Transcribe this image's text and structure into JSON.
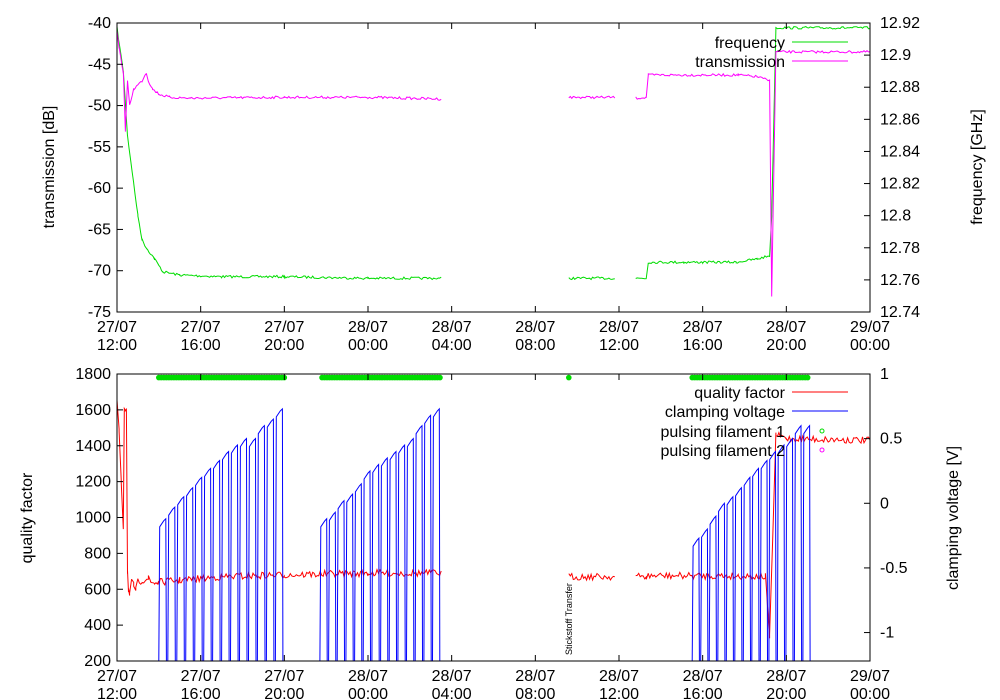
{
  "chart_data": [
    {
      "type": "line",
      "xlabel": "",
      "ylabel": "transmission [dB]",
      "y2label": "frequency [GHz]",
      "ylim": [
        -75,
        -40
      ],
      "y2lim": [
        12.74,
        12.92
      ],
      "xlim_hours": [
        0,
        36
      ],
      "x_ticks": [
        {
          "d": "27/07",
          "t": "12:00"
        },
        {
          "d": "27/07",
          "t": "16:00"
        },
        {
          "d": "27/07",
          "t": "20:00"
        },
        {
          "d": "28/07",
          "t": "00:00"
        },
        {
          "d": "28/07",
          "t": "04:00"
        },
        {
          "d": "28/07",
          "t": "08:00"
        },
        {
          "d": "28/07",
          "t": "12:00"
        },
        {
          "d": "28/07",
          "t": "16:00"
        },
        {
          "d": "28/07",
          "t": "20:00"
        },
        {
          "d": "29/07",
          "t": "00:00"
        }
      ],
      "y_ticks": [
        "-40",
        "-45",
        "-50",
        "-55",
        "-60",
        "-65",
        "-70",
        "-75"
      ],
      "y2_ticks": [
        "12.92",
        "12.9",
        "12.88",
        "12.86",
        "12.84",
        "12.82",
        "12.8",
        "12.78",
        "12.76",
        "12.74"
      ],
      "legend_position": "top-right",
      "series": [
        {
          "name": "frequency",
          "axis": "y2",
          "color": "#00dd00",
          "x_hours": [
            0,
            0.3,
            0.5,
            0.8,
            1.0,
            1.2,
            1.4,
            1.8,
            2.2,
            3.0,
            5,
            8,
            12,
            15.5,
            null,
            21.6,
            23.8,
            null,
            24.8,
            25.3,
            25.4,
            27.1,
            28.0,
            29.6,
            30.6,
            31.2,
            31.3,
            31.5,
            36
          ],
          "y": [
            12.917,
            12.89,
            12.85,
            12.82,
            12.8,
            12.785,
            12.78,
            12.773,
            12.765,
            12.763,
            12.762,
            12.762,
            12.761,
            12.761,
            null,
            12.761,
            12.761,
            null,
            12.761,
            12.761,
            12.771,
            12.771,
            12.771,
            12.771,
            12.773,
            12.775,
            12.8,
            12.917,
            12.917
          ]
        },
        {
          "name": "transmission",
          "axis": "y",
          "color": "#ff00ff",
          "x_hours": [
            0,
            0.1,
            0.3,
            0.4,
            0.5,
            0.6,
            0.8,
            1.2,
            1.4,
            1.5,
            1.7,
            2.0,
            2.5,
            3.5,
            8,
            12,
            15.5,
            null,
            21.6,
            23.8,
            null,
            24.8,
            25.3,
            25.4,
            29.7,
            30.6,
            31.2,
            31.3,
            31.5,
            36
          ],
          "y": [
            -41,
            -43,
            -46,
            -53,
            -47,
            -50,
            -48,
            -47,
            -46,
            -47,
            -48,
            -48.6,
            -49,
            -49.1,
            -49,
            -49,
            -49.2,
            null,
            -49,
            -49,
            null,
            -49.1,
            -49,
            -46.3,
            -46.3,
            -46.5,
            -47,
            -73,
            -43.5,
            -43.5
          ]
        }
      ]
    },
    {
      "type": "line",
      "xlabel": "",
      "ylabel": "quality factor",
      "y2label": "clamping voltage [V]",
      "ylim": [
        200,
        1800
      ],
      "y2lim": [
        -1.22,
        1.0
      ],
      "xlim_hours": [
        0,
        36
      ],
      "x_ticks": [
        {
          "d": "27/07",
          "t": "12:00"
        },
        {
          "d": "27/07",
          "t": "16:00"
        },
        {
          "d": "27/07",
          "t": "20:00"
        },
        {
          "d": "28/07",
          "t": "00:00"
        },
        {
          "d": "28/07",
          "t": "04:00"
        },
        {
          "d": "28/07",
          "t": "08:00"
        },
        {
          "d": "28/07",
          "t": "12:00"
        },
        {
          "d": "28/07",
          "t": "16:00"
        },
        {
          "d": "28/07",
          "t": "20:00"
        },
        {
          "d": "29/07",
          "t": "00:00"
        }
      ],
      "y_ticks": [
        "1800",
        "1600",
        "1400",
        "1200",
        "1000",
        "800",
        "600",
        "400",
        "200"
      ],
      "y2_ticks": [
        "1",
        "0.5",
        "0",
        "-0.5",
        "-1"
      ],
      "legend_position": "top-right",
      "annotation": "Stickstoff Transfer",
      "series": [
        {
          "name": "quality factor",
          "axis": "y",
          "color": "#ff0000",
          "x_hours": [
            0,
            0.1,
            0.2,
            0.3,
            0.35,
            0.4,
            0.45,
            0.5,
            0.55,
            0.6,
            0.7,
            0.8,
            0.9,
            1.0,
            1.2,
            1.5,
            1.6,
            1.8,
            2.0,
            3,
            5,
            8,
            12,
            15.5,
            null,
            21.6,
            23.8,
            null,
            24.8,
            25.3,
            25.4,
            29.7,
            31.0,
            31.2,
            31.5,
            32.0,
            36
          ],
          "y": [
            1650,
            1480,
            1200,
            920,
            1610,
            1610,
            1610,
            700,
            600,
            560,
            640,
            620,
            600,
            640,
            650,
            660,
            640,
            635,
            640,
            650,
            670,
            680,
            690,
            690,
            null,
            670,
            670,
            null,
            670,
            670,
            675,
            675,
            670,
            330,
            1460,
            1440,
            1430
          ]
        },
        {
          "name": "clamping voltage",
          "axis": "y2",
          "color": "#0000ff",
          "shape": "sawtooth",
          "runs": [
            {
              "start": 2.0,
              "end": 8.0,
              "peaks": [
                -0.12,
                -0.03,
                0.05,
                0.12,
                0.2,
                0.27,
                0.33,
                0.4,
                0.45,
                0.5,
                0.5,
                0.6,
                0.65,
                0.73
              ]
            },
            {
              "start": 9.7,
              "end": 15.5,
              "peaks": [
                -0.12,
                -0.07,
                0.02,
                0.07,
                0.15,
                0.25,
                0.3,
                0.35,
                0.4,
                0.45,
                0.5,
                0.6,
                0.68,
                0.73
              ]
            },
            {
              "start": 27.5,
              "end": 33.2,
              "peaks": [
                -0.27,
                -0.2,
                -0.1,
                0.0,
                0.05,
                0.12,
                0.2,
                0.27,
                0.33,
                0.4,
                0.45,
                0.5,
                0.6,
                0.6
              ]
            }
          ]
        },
        {
          "name": "pulsing filament 1",
          "axis": "y",
          "color": "#00dd00",
          "marker": "circle",
          "y_level": 1780,
          "segments_hours": [
            [
              2.0,
              8.0
            ],
            [
              9.8,
              15.5
            ],
            [
              21.6,
              21.7
            ],
            [
              27.5,
              33.1
            ]
          ]
        },
        {
          "name": "pulsing filament 2",
          "axis": "y",
          "color": "#ff00ff",
          "marker": "circle",
          "segments_hours": []
        }
      ]
    }
  ]
}
